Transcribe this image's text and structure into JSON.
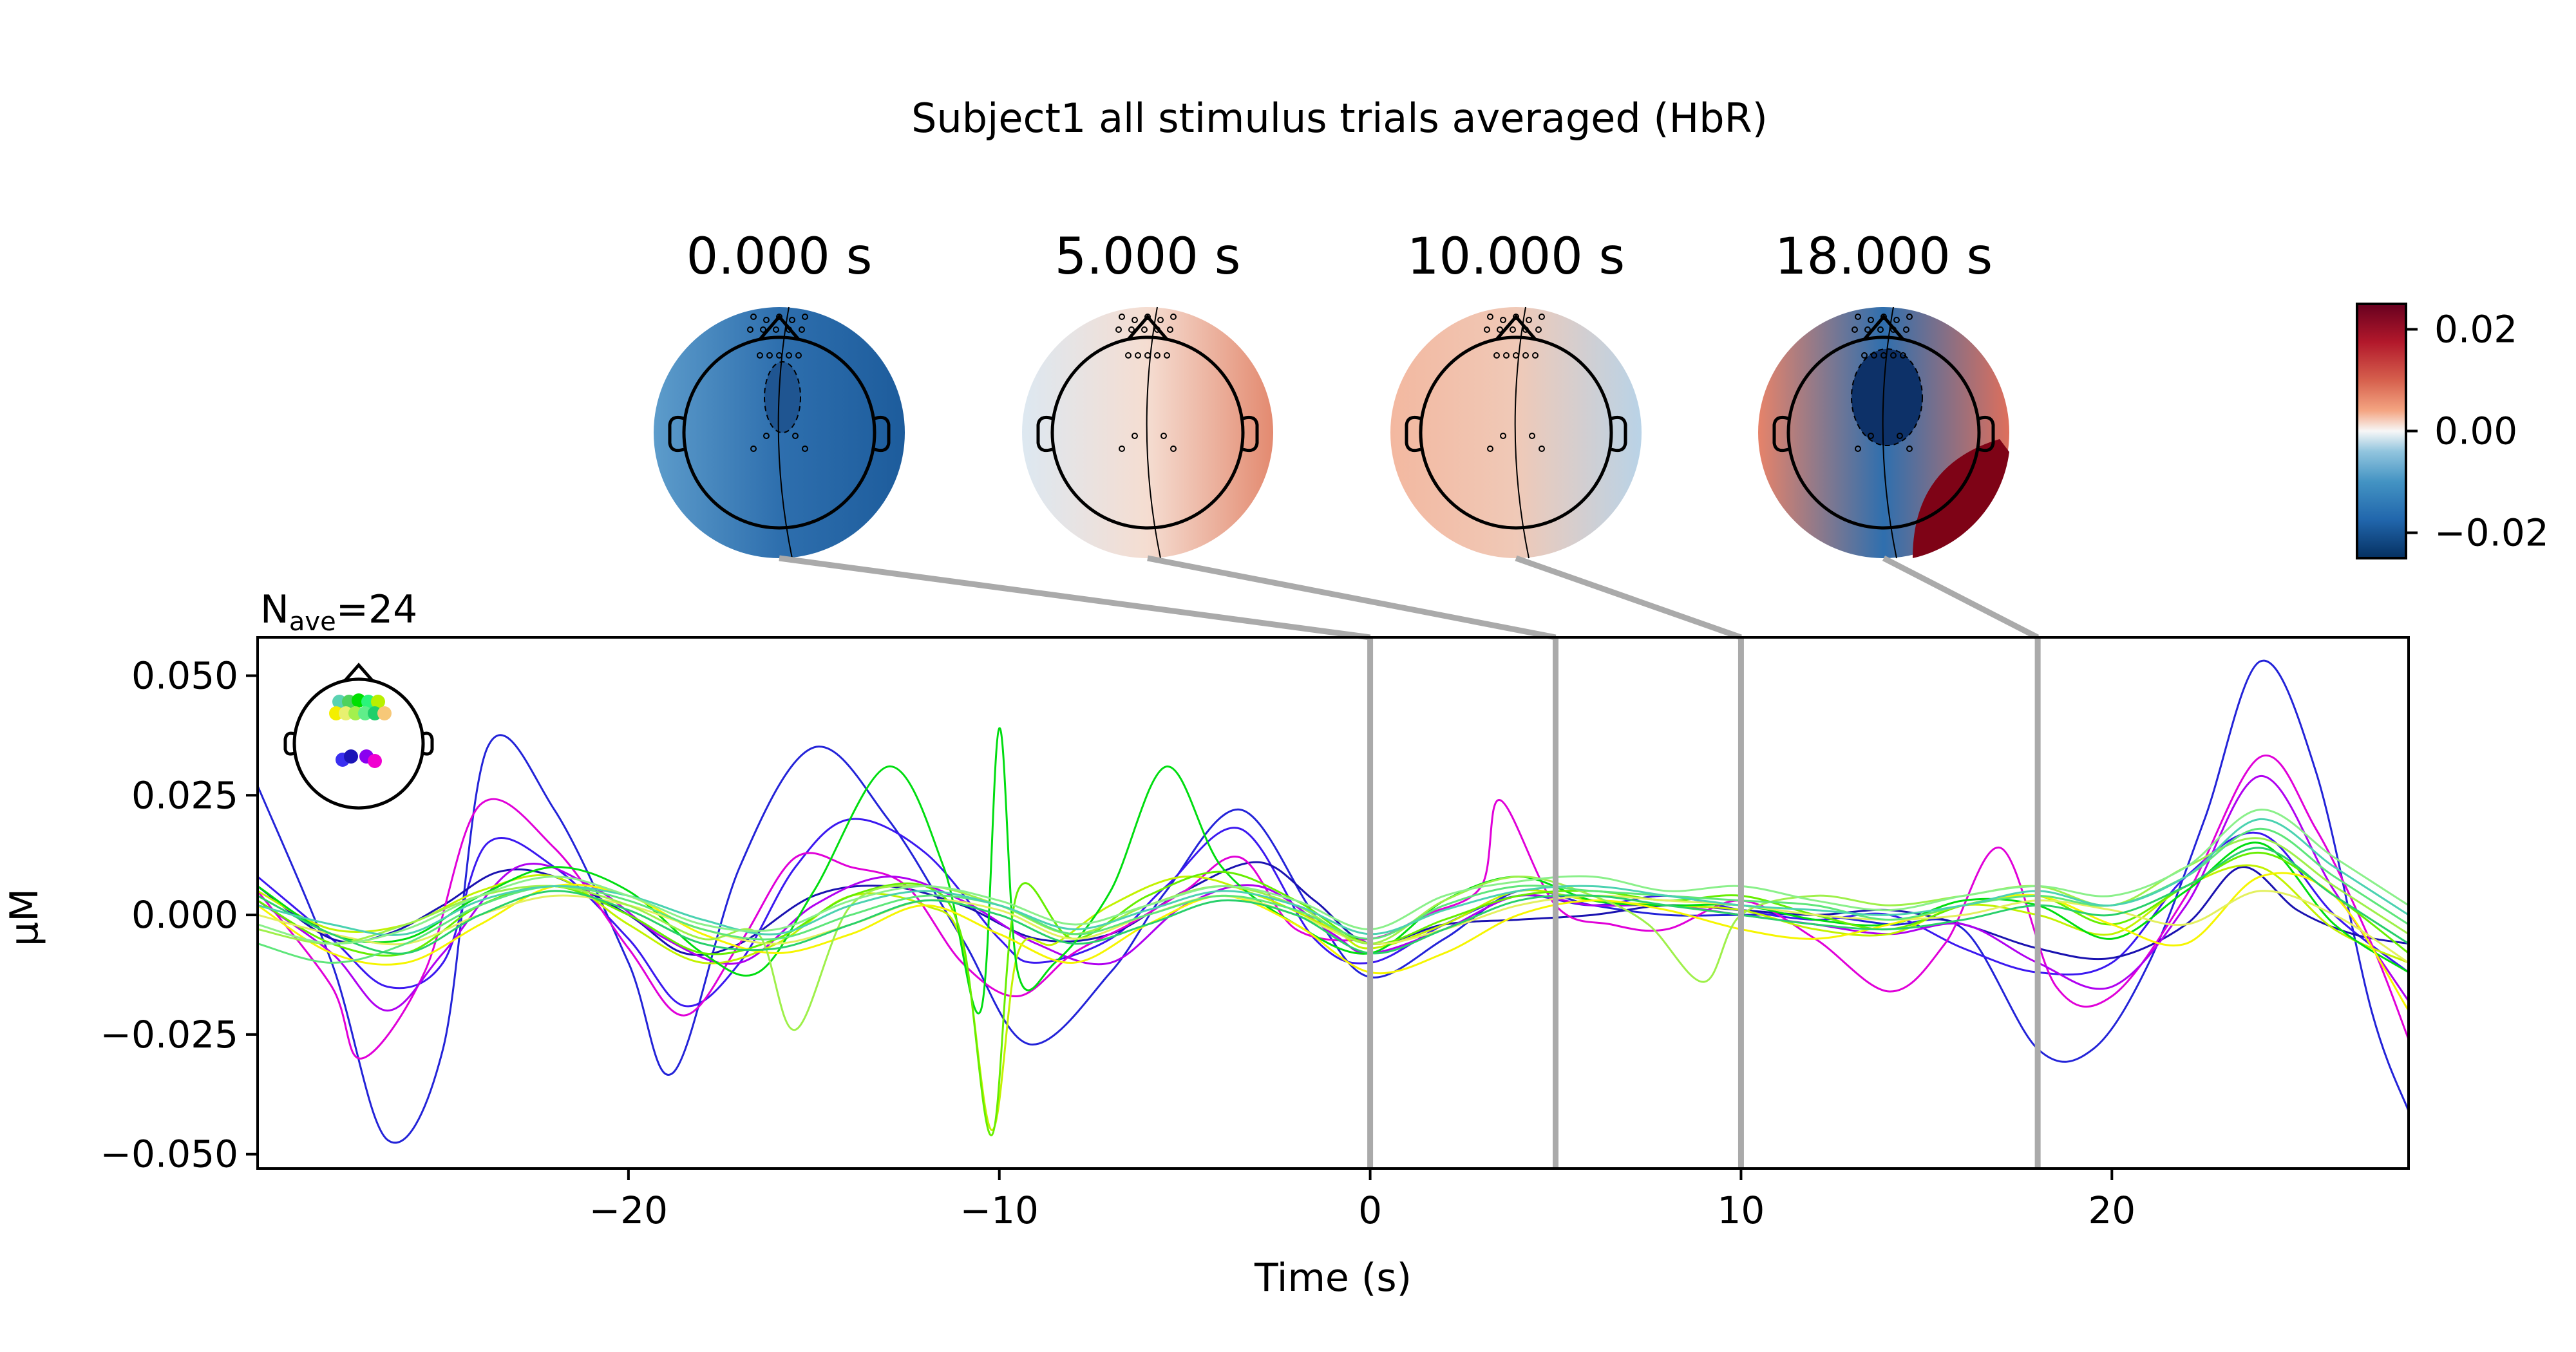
{
  "chart_data": {
    "type": "line",
    "title": "Subject1 all stimulus trials averaged (HbR)",
    "xlabel": "Time (s)",
    "ylabel": "µM",
    "xlim": [
      -30,
      28
    ],
    "ylim": [
      -0.053,
      0.058
    ],
    "xticks": [
      -20,
      -10,
      0,
      10,
      20
    ],
    "xtick_labels": [
      "−20",
      "−10",
      "0",
      "10",
      "20"
    ],
    "yticks": [
      -0.05,
      -0.025,
      0.0,
      0.025,
      0.05
    ],
    "ytick_labels": [
      "−0.050",
      "−0.025",
      "0.000",
      "0.025",
      "0.050"
    ],
    "nave_label": {
      "main": "N",
      "sub": "ave",
      "rest": "=24"
    },
    "colorbar": {
      "cmap": "RdBu_r",
      "range": [
        -0.025,
        0.025
      ],
      "ticks": [
        0.02,
        0.0,
        -0.02
      ],
      "tick_labels": [
        "0.02",
        "0.00",
        "−0.02"
      ]
    },
    "topomaps": [
      {
        "time": 0,
        "label": "0.000 s",
        "left": "#5d9ccb",
        "center": "#2e6fae",
        "right": "#1d5c9c",
        "blob": "#1f5591",
        "spot": null
      },
      {
        "time": 5,
        "label": "5.000 s",
        "left": "#dde8f1",
        "center": "#f5ddd1",
        "right": "#e38a70",
        "blob": null,
        "spot": null
      },
      {
        "time": 10,
        "label": "10.000 s",
        "left": "#f3b8a0",
        "center": "#f0c9b7",
        "right": "#b9d3e7",
        "blob": null,
        "spot": null
      },
      {
        "time": 18,
        "label": "18.000 s",
        "left": "#e6836a",
        "center": "#2f6fae",
        "right": "#de6f5c",
        "blob": "#0d3168",
        "spot": "#7e0316"
      }
    ],
    "sensor_colors": [
      "#5ad2b1",
      "#4ed25d",
      "#00e000",
      "#2bf47a",
      "#b8f000",
      "#f4ef00",
      "#e8f070",
      "#a3f04e",
      "#60ee8a",
      "#1fcf6a",
      "#f7c878",
      "#3a2ff0",
      "#1c14b7",
      "#8a00f0",
      "#f000d0"
    ],
    "series": [
      {
        "color": "#2323d8",
        "x": [
          -30,
          -28,
          -26.5,
          -25,
          -23.8,
          -22,
          -20,
          -18.8,
          -17,
          -15,
          -13,
          -11,
          -9.2,
          -7,
          -5.5,
          -3.5,
          -1.5,
          0,
          2,
          4,
          6,
          8,
          10,
          12,
          14,
          16,
          18,
          19.5,
          21,
          22.5,
          24,
          25.5,
          27,
          28
        ],
        "y": [
          0.027,
          -0.01,
          -0.047,
          -0.028,
          0.035,
          0.022,
          -0.01,
          -0.033,
          0.01,
          0.035,
          0.02,
          -0.005,
          -0.027,
          -0.012,
          0.005,
          0.022,
          0.0,
          -0.013,
          -0.005,
          0.005,
          0.002,
          0.0,
          0.0,
          0.0,
          -0.002,
          -0.003,
          -0.028,
          -0.028,
          -0.01,
          0.02,
          0.053,
          0.03,
          -0.02,
          -0.041
        ]
      },
      {
        "color": "#3b18f0",
        "x": [
          -30,
          -28,
          -26.5,
          -25,
          -23.8,
          -22,
          -20,
          -18.5,
          -17,
          -15.5,
          -14,
          -12,
          -10,
          -9,
          -7,
          -5.5,
          -3.5,
          -1.5,
          0,
          2,
          4,
          6,
          8,
          10,
          12,
          14,
          16,
          18,
          20,
          22,
          24,
          26,
          28
        ],
        "y": [
          0.008,
          -0.005,
          -0.015,
          -0.01,
          0.015,
          0.01,
          -0.005,
          -0.019,
          -0.01,
          0.01,
          0.02,
          0.013,
          -0.005,
          -0.01,
          -0.005,
          0.006,
          0.018,
          -0.005,
          -0.01,
          -0.002,
          0.004,
          0.002,
          0.004,
          0.001,
          -0.001,
          0.0,
          -0.007,
          -0.012,
          -0.01,
          0.008,
          0.017,
          0.0,
          -0.012
        ]
      },
      {
        "color": "#1a12b0",
        "x": [
          -30,
          -28,
          -26.5,
          -25,
          -23.5,
          -22,
          -20,
          -18.5,
          -17,
          -15,
          -13,
          -11,
          -9,
          -7,
          -5,
          -3,
          -1.5,
          0,
          2,
          4,
          6,
          8,
          10,
          12,
          14,
          16,
          18,
          20,
          22,
          23.5,
          25,
          26.5,
          28
        ],
        "y": [
          0.006,
          -0.005,
          -0.004,
          0.002,
          0.009,
          0.008,
          0.0,
          -0.008,
          -0.006,
          0.004,
          0.006,
          0.002,
          -0.005,
          -0.004,
          0.005,
          0.011,
          0.003,
          -0.006,
          -0.002,
          -0.001,
          0.0,
          0.002,
          0.001,
          0.0,
          0.001,
          -0.002,
          -0.007,
          -0.009,
          -0.002,
          0.01,
          0.001,
          -0.004,
          -0.006
        ]
      },
      {
        "color": "#e000d8",
        "x": [
          -30,
          -28,
          -27.2,
          -25.5,
          -24,
          -22,
          -20,
          -18.5,
          -17,
          -15.5,
          -14,
          -12.5,
          -11,
          -9.5,
          -8,
          -6.5,
          -5,
          -3.5,
          -2,
          0,
          1.5,
          3,
          3.5,
          5,
          6.5,
          8,
          10,
          12,
          14,
          15.5,
          17,
          18.5,
          20,
          22,
          24,
          25.5,
          27,
          28
        ],
        "y": [
          0.005,
          -0.015,
          -0.03,
          -0.012,
          0.023,
          0.014,
          -0.007,
          -0.021,
          -0.006,
          0.012,
          0.01,
          0.006,
          -0.01,
          -0.017,
          -0.008,
          -0.002,
          0.005,
          0.012,
          -0.003,
          -0.005,
          0.0,
          0.006,
          0.024,
          0.002,
          -0.002,
          -0.003,
          0.003,
          -0.005,
          -0.016,
          -0.006,
          0.014,
          -0.015,
          -0.017,
          0.004,
          0.033,
          0.018,
          -0.006,
          -0.026
        ]
      },
      {
        "color": "#b000f0",
        "x": [
          -30,
          -28,
          -26.5,
          -25,
          -23,
          -21,
          -19,
          -17,
          -15,
          -13,
          -11,
          -9,
          -7,
          -5,
          -3,
          -1,
          0,
          2,
          4,
          6,
          8,
          10,
          12,
          14,
          16,
          18,
          20,
          22,
          24,
          26,
          28
        ],
        "y": [
          0.003,
          -0.008,
          -0.02,
          -0.008,
          0.01,
          0.006,
          -0.005,
          -0.01,
          0.002,
          0.008,
          0.003,
          -0.006,
          -0.01,
          0.002,
          0.006,
          -0.004,
          -0.008,
          -0.003,
          0.004,
          0.002,
          0.002,
          0.0,
          -0.002,
          -0.004,
          -0.002,
          -0.01,
          -0.015,
          0.002,
          0.029,
          0.005,
          -0.018
        ]
      },
      {
        "color": "#c2f200",
        "x": [
          -30,
          -28,
          -26,
          -24,
          -22,
          -20,
          -18,
          -16,
          -14,
          -12,
          -11,
          -10.2,
          -9.5,
          -8.5,
          -7,
          -5,
          -3,
          -1,
          0,
          2,
          4,
          6,
          8,
          10,
          12,
          14,
          16,
          18,
          20,
          22,
          24,
          26,
          28
        ],
        "y": [
          0.005,
          -0.003,
          -0.002,
          0.005,
          0.008,
          -0.002,
          -0.01,
          -0.006,
          0.004,
          0.002,
          -0.006,
          -0.045,
          -0.008,
          -0.006,
          0.002,
          0.008,
          0.004,
          -0.003,
          -0.007,
          -0.002,
          0.005,
          0.003,
          0.002,
          0.001,
          -0.003,
          -0.004,
          0.002,
          0.0,
          -0.004,
          0.006,
          0.01,
          -0.003,
          -0.01
        ]
      },
      {
        "color": "#00dd10",
        "x": [
          -30,
          -28,
          -26,
          -24,
          -22,
          -20,
          -18,
          -16.5,
          -15,
          -13,
          -11.5,
          -10.5,
          -10,
          -9.5,
          -8.5,
          -7,
          -5.5,
          -4,
          -2,
          0,
          2,
          4,
          6,
          8,
          10,
          12,
          14,
          16,
          18,
          20,
          22,
          24,
          26,
          28
        ],
        "y": [
          0.006,
          -0.004,
          -0.005,
          0.004,
          0.01,
          0.005,
          -0.008,
          -0.012,
          0.005,
          0.031,
          0.01,
          -0.02,
          0.039,
          -0.012,
          -0.01,
          0.005,
          0.031,
          0.01,
          -0.002,
          -0.008,
          0.003,
          0.008,
          0.003,
          0.002,
          0.002,
          -0.001,
          -0.002,
          0.003,
          0.002,
          -0.005,
          0.005,
          0.015,
          -0.002,
          -0.012
        ]
      },
      {
        "color": "#66ee00",
        "x": [
          -30,
          -28,
          -26,
          -24,
          -22,
          -20,
          -18,
          -16,
          -14,
          -12,
          -11,
          -10.2,
          -9.5,
          -8,
          -6,
          -4,
          -2,
          0,
          2,
          4,
          6,
          8,
          10,
          12,
          14,
          16,
          18,
          20,
          22,
          24,
          26,
          28
        ],
        "y": [
          0.003,
          -0.006,
          -0.008,
          0.002,
          0.006,
          0.0,
          -0.008,
          -0.005,
          0.004,
          0.006,
          -0.005,
          -0.046,
          0.005,
          -0.005,
          0.004,
          0.009,
          0.003,
          -0.006,
          -0.001,
          0.004,
          0.005,
          0.003,
          0.004,
          0.0,
          -0.003,
          0.002,
          0.004,
          -0.002,
          0.006,
          0.013,
          0.004,
          -0.008
        ]
      },
      {
        "color": "#f5f500",
        "x": [
          -30,
          -28,
          -26,
          -24,
          -22,
          -20,
          -18,
          -16,
          -14,
          -12,
          -10,
          -8,
          -6,
          -4,
          -2,
          0,
          2,
          4,
          6,
          8,
          10,
          12,
          14,
          16,
          18,
          20,
          22,
          24,
          26,
          28
        ],
        "y": [
          0.002,
          -0.008,
          -0.01,
          -0.002,
          0.006,
          0.004,
          -0.004,
          -0.008,
          -0.004,
          0.002,
          -0.004,
          -0.01,
          -0.002,
          0.004,
          -0.002,
          -0.012,
          -0.008,
          0.0,
          0.003,
          0.001,
          -0.003,
          -0.005,
          -0.002,
          0.002,
          0.004,
          -0.002,
          -0.006,
          0.008,
          0.004,
          -0.02
        ]
      },
      {
        "color": "#e3f05e",
        "x": [
          -30,
          -28,
          -26,
          -24,
          -22,
          -20,
          -18,
          -16,
          -14,
          -12,
          -10,
          -8,
          -6,
          -4,
          -2,
          0,
          2,
          4,
          6,
          8,
          10,
          12,
          14,
          16,
          18,
          20,
          22,
          24,
          26,
          28
        ],
        "y": [
          0.0,
          -0.004,
          -0.006,
          0.0,
          0.004,
          0.002,
          -0.003,
          -0.006,
          -0.002,
          0.003,
          0.001,
          -0.005,
          0.0,
          0.004,
          0.0,
          -0.006,
          -0.003,
          0.002,
          0.004,
          0.003,
          0.002,
          0.0,
          -0.001,
          0.0,
          0.003,
          0.001,
          -0.002,
          0.005,
          0.0,
          -0.01
        ]
      },
      {
        "color": "#9ef04a",
        "x": [
          -30,
          -28,
          -26,
          -24,
          -22,
          -20,
          -18,
          -16.5,
          -15.5,
          -14,
          -12,
          -10,
          -8,
          -6,
          -4,
          -2,
          0,
          2,
          4,
          6,
          7.5,
          9,
          10,
          12,
          14,
          16,
          18,
          20,
          22,
          24,
          26,
          28
        ],
        "y": [
          -0.003,
          -0.006,
          -0.002,
          0.004,
          0.006,
          0.002,
          -0.005,
          -0.004,
          -0.024,
          0.002,
          0.006,
          0.002,
          -0.004,
          0.002,
          0.006,
          0.002,
          -0.006,
          0.003,
          0.008,
          0.004,
          -0.002,
          -0.014,
          0.0,
          0.004,
          0.002,
          0.004,
          0.006,
          0.002,
          0.01,
          0.016,
          0.006,
          -0.004
        ]
      },
      {
        "color": "#5ee67a",
        "x": [
          -30,
          -28,
          -26,
          -24,
          -22,
          -20,
          -18,
          -16,
          -14,
          -12,
          -10,
          -8,
          -6,
          -4,
          -2,
          0,
          2,
          4,
          6,
          8,
          10,
          12,
          14,
          16,
          18,
          20,
          22,
          24,
          26,
          28
        ],
        "y": [
          -0.006,
          -0.01,
          -0.006,
          0.002,
          0.006,
          0.003,
          -0.003,
          -0.005,
          0.0,
          0.004,
          0.002,
          -0.004,
          0.0,
          0.004,
          0.001,
          -0.005,
          0.002,
          0.006,
          0.005,
          0.004,
          0.003,
          0.002,
          -0.001,
          0.002,
          0.004,
          0.002,
          0.008,
          0.018,
          0.008,
          -0.002
        ]
      },
      {
        "color": "#28d06a",
        "x": [
          -30,
          -28,
          -26,
          -24,
          -22,
          -20,
          -18,
          -16,
          -14,
          -12,
          -10,
          -8,
          -6,
          -4,
          -2,
          0,
          2,
          4,
          6,
          8,
          10,
          12,
          14,
          16,
          18,
          20,
          22,
          24,
          26,
          28
        ],
        "y": [
          0.004,
          -0.004,
          -0.008,
          0.0,
          0.005,
          0.001,
          -0.006,
          -0.007,
          -0.002,
          0.003,
          0.0,
          -0.006,
          -0.002,
          0.003,
          0.0,
          -0.008,
          -0.003,
          0.003,
          0.004,
          0.002,
          0.0,
          -0.002,
          -0.003,
          -0.001,
          0.002,
          0.0,
          0.006,
          0.014,
          0.004,
          -0.006
        ]
      },
      {
        "color": "#4ad2b0",
        "x": [
          -30,
          -28,
          -26,
          -24,
          -22,
          -20,
          -18,
          -16,
          -14,
          -12,
          -10,
          -8,
          -6,
          -4,
          -2,
          0,
          2,
          4,
          6,
          8,
          10,
          12,
          14,
          16,
          18,
          20,
          22,
          24,
          26,
          28
        ],
        "y": [
          0.002,
          -0.002,
          -0.004,
          0.003,
          0.006,
          0.004,
          -0.001,
          -0.004,
          0.002,
          0.005,
          0.002,
          -0.003,
          0.001,
          0.005,
          0.002,
          -0.004,
          0.001,
          0.005,
          0.006,
          0.004,
          0.002,
          0.001,
          0.0,
          0.002,
          0.005,
          0.002,
          0.008,
          0.02,
          0.01,
          0.0
        ]
      },
      {
        "color": "#8af08a",
        "x": [
          -30,
          -28,
          -26,
          -24,
          -22,
          -20,
          -18,
          -16,
          -14,
          -12,
          -10,
          -8,
          -6,
          -4,
          -2,
          0,
          2,
          4,
          6,
          8,
          10,
          12,
          14,
          16,
          18,
          20,
          22,
          24,
          26,
          28
        ],
        "y": [
          -0.002,
          -0.006,
          -0.003,
          0.004,
          0.008,
          0.004,
          -0.002,
          -0.003,
          0.003,
          0.006,
          0.003,
          -0.002,
          0.002,
          0.006,
          0.003,
          -0.003,
          0.004,
          0.007,
          0.008,
          0.005,
          0.006,
          0.003,
          0.001,
          0.004,
          0.006,
          0.004,
          0.01,
          0.022,
          0.012,
          0.002
        ]
      }
    ]
  }
}
